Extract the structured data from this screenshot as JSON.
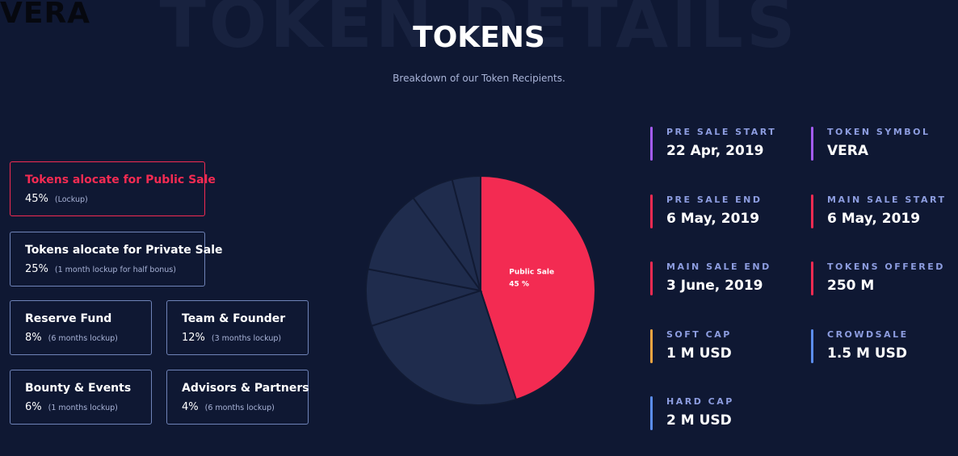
{
  "logo": "VERA",
  "background_title": "TOKEN DETAILS",
  "header": {
    "title": "TOKENS",
    "subtitle": "Breakdown of our Token Recipients."
  },
  "allocations": [
    {
      "name": "Tokens alocate for Public Sale",
      "percent": "45%",
      "note": "(Lockup)"
    },
    {
      "name": "Tokens alocate for Private Sale",
      "percent": "25%",
      "note": "(1 month lockup for half bonus)"
    },
    {
      "name": "Reserve Fund",
      "percent": "8%",
      "note": "(6 months lockup)"
    },
    {
      "name": "Team & Founder",
      "percent": "12%",
      "note": "(3 months lockup)"
    },
    {
      "name": "Bounty & Events",
      "percent": "6%",
      "note": "(1 months lockup)"
    },
    {
      "name": "Advisors & Partners",
      "percent": "4%",
      "note": "(6 months lockup)"
    }
  ],
  "chart_data": {
    "type": "pie",
    "categories": [
      "Public Sale",
      null,
      null,
      null,
      null,
      null
    ],
    "values": [
      45,
      25,
      8,
      12,
      6,
      4
    ],
    "value_labels": [
      "45 %",
      null,
      null,
      null,
      null,
      null
    ],
    "colors": [
      "#f32b52",
      "#1f2c4d",
      "#1f2c4d",
      "#1f2c4d",
      "#1f2c4d",
      "#1f2c4d"
    ]
  },
  "details": [
    {
      "label": "PRE SALE START",
      "value": "22 Apr, 2019",
      "color": "#a45cf5"
    },
    {
      "label": "TOKEN SYMBOL",
      "value": "VERA",
      "color": "#a45cf5"
    },
    {
      "label": "PRE SALE END",
      "value": "6 May, 2019",
      "color": "#f32b52"
    },
    {
      "label": "MAIN SALE START",
      "value": "6 May, 2019",
      "color": "#f32b52"
    },
    {
      "label": "MAIN SALE END",
      "value": "3 June, 2019",
      "color": "#f32b52"
    },
    {
      "label": "TOKENS OFFERED",
      "value": "250 M",
      "color": "#f32b52"
    },
    {
      "label": "SOFT CAP",
      "value": "1 M USD",
      "color": "#f2a541"
    },
    {
      "label": "CROWDSALE",
      "value": "1.5 M USD",
      "color": "#5b8def"
    },
    {
      "label": "HARD CAP",
      "value": "2 M USD",
      "color": "#5b8def"
    }
  ]
}
